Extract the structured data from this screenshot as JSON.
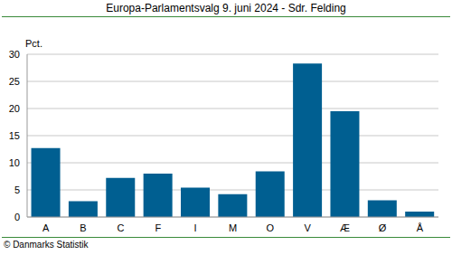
{
  "chart_data": {
    "type": "bar",
    "title": "Europa-Parlamentsvalg 9. juni 2024 - Sdr. Felding",
    "y_label": "Pct.",
    "annotations": [
      "© Danmarks Statistik"
    ],
    "categories": [
      "A",
      "B",
      "C",
      "F",
      "I",
      "M",
      "O",
      "V",
      "Æ",
      "Ø",
      "Å"
    ],
    "values": [
      12.7,
      2.9,
      7.2,
      8.0,
      5.4,
      4.2,
      8.4,
      28.3,
      19.5,
      3.1,
      1.0
    ],
    "color": "#005f91",
    "ylim": [
      0,
      30
    ],
    "yticks": [
      0,
      5,
      10,
      15,
      20,
      25,
      30
    ],
    "grid": true
  }
}
